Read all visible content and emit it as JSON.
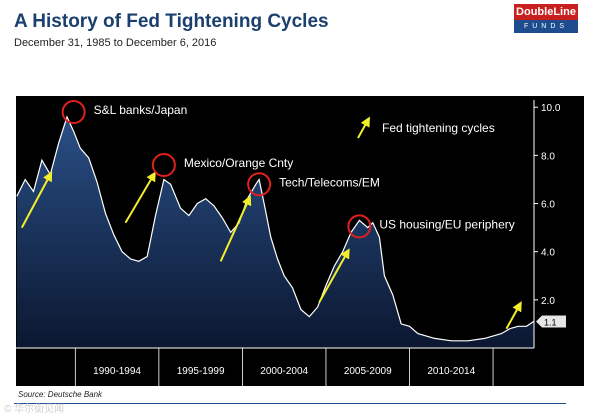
{
  "header": {
    "title": "A History of Fed Tightening Cycles",
    "subtitle": "December 31, 1985 to December 6, 2016"
  },
  "logo": {
    "brand": "DoubleLine",
    "sub": "FUNDS"
  },
  "source": "Source: Deutsche Bank",
  "watermark": "© 华尔街见闻",
  "colors": {
    "plot_bg": "#000000",
    "area_fill_top": "#2a4f86",
    "area_fill_bottom": "#0d1a33",
    "line": "#ffffff",
    "arrow": "#f2ee2b",
    "circle": "#e0201c",
    "axis_text": "#ffffff"
  },
  "chart_data": {
    "type": "area",
    "x": [
      1986.0,
      1986.5,
      1987.0,
      1987.5,
      1988.0,
      1988.5,
      1989.0,
      1989.4,
      1989.8,
      1990.3,
      1990.8,
      1991.3,
      1991.8,
      1992.3,
      1992.8,
      1993.3,
      1993.8,
      1994.3,
      1994.8,
      1995.2,
      1995.8,
      1996.3,
      1996.8,
      1997.3,
      1997.8,
      1998.3,
      1998.8,
      1999.3,
      1999.8,
      2000.3,
      2000.5,
      2000.8,
      2001.2,
      2001.6,
      2002.0,
      2002.5,
      2003.0,
      2003.5,
      2004.0,
      2004.5,
      2005.0,
      2005.5,
      2006.0,
      2006.5,
      2007.0,
      2007.3,
      2007.7,
      2008.0,
      2008.5,
      2009.0,
      2009.5,
      2010.0,
      2011.0,
      2012.0,
      2013.0,
      2014.0,
      2015.0,
      2015.5,
      2016.0,
      2016.5,
      2016.93
    ],
    "values": [
      6.3,
      7.0,
      6.5,
      7.8,
      7.2,
      8.5,
      9.6,
      9.0,
      8.3,
      7.9,
      6.9,
      5.6,
      4.7,
      4.0,
      3.7,
      3.6,
      3.8,
      5.5,
      7.0,
      6.8,
      5.8,
      5.5,
      6.0,
      6.2,
      5.9,
      5.4,
      4.8,
      5.2,
      6.2,
      6.8,
      7.0,
      6.0,
      4.6,
      3.7,
      3.0,
      2.5,
      1.6,
      1.3,
      1.7,
      2.6,
      3.4,
      4.0,
      4.8,
      5.3,
      5.0,
      5.2,
      4.6,
      3.0,
      2.2,
      1.0,
      0.9,
      0.6,
      0.4,
      0.3,
      0.3,
      0.4,
      0.6,
      0.8,
      0.9,
      0.9,
      1.1
    ],
    "ylim": [
      0,
      10.3
    ],
    "xlim": [
      1985.95,
      2016.95
    ],
    "yticks": [
      "2.0",
      "4.0",
      "6.0",
      "8.0",
      "10.0"
    ],
    "ytick_values": [
      2,
      4,
      6,
      8,
      10
    ],
    "last_value_label": "1.1",
    "last_value": 1.1,
    "x_tick_labels": [
      "1990-1994",
      "1995-1999",
      "2000-2004",
      "2005-2009",
      "2010-2014"
    ],
    "x_tick_centers": [
      1992.0,
      1997.0,
      2002.0,
      2007.0,
      2012.0
    ],
    "x_dividers": [
      1989.5,
      1994.5,
      1999.5,
      2004.5,
      2009.5,
      2014.5
    ],
    "grid": false,
    "annotations": [
      {
        "label": "S&L banks/Japan",
        "peak_x": 1989.4,
        "peak_y": 9.8
      },
      {
        "label": "Mexico/Orange Cnty",
        "peak_x": 1994.8,
        "peak_y": 7.6
      },
      {
        "label": "Tech/Telecoms/EM",
        "peak_x": 2000.5,
        "peak_y": 6.8
      },
      {
        "label": "US housing/EU periphery",
        "peak_x": 2006.5,
        "peak_y": 5.05
      }
    ],
    "arrows": [
      {
        "x0": 1986.3,
        "y0": 5.0,
        "x1": 1988.0,
        "y1": 7.2
      },
      {
        "x0": 1992.5,
        "y0": 5.2,
        "x1": 1994.2,
        "y1": 7.2
      },
      {
        "x0": 1998.2,
        "y0": 3.6,
        "x1": 1999.9,
        "y1": 6.2
      },
      {
        "x0": 2004.1,
        "y0": 1.9,
        "x1": 2005.8,
        "y1": 4.0
      },
      {
        "x0": 2015.3,
        "y0": 0.8,
        "x1": 2016.1,
        "y1": 1.8
      }
    ],
    "legend": {
      "label": "Fed tightening cycles",
      "placement": "top-right"
    }
  }
}
